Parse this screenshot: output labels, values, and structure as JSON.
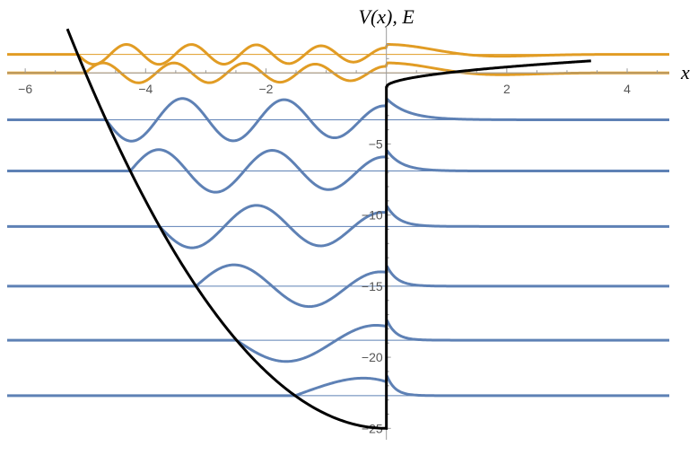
{
  "chart_data": {
    "type": "line",
    "title": "",
    "xlabel": "x",
    "ylabel": "V(x), E",
    "xlim": [
      -6.3,
      4.7
    ],
    "ylim": [
      -25.8,
      2.6
    ],
    "grid": false,
    "legend": "none",
    "x_ticks": [
      -6,
      -4,
      -2,
      2,
      4
    ],
    "x_tick_labels": [
      "−6",
      "−4",
      "−2",
      "2",
      "4"
    ],
    "y_ticks": [
      -5,
      -10,
      -15,
      -20,
      -25
    ],
    "y_tick_labels": [
      "−5",
      "−10",
      "−15",
      "−20",
      "−25"
    ],
    "potential": {
      "color": "#000000",
      "left_branch": "V(x) = x^2 - 25 for x < 0",
      "right_branch": "V(x) = sqrt(x) - 1 for x >= 0",
      "samples": [
        [
          -5.3,
          3.1
        ],
        [
          -5,
          0
        ],
        [
          -4,
          -9
        ],
        [
          -3,
          -16
        ],
        [
          -2,
          -21
        ],
        [
          -1,
          -24
        ],
        [
          0,
          -25
        ],
        [
          0,
          -1
        ],
        [
          0.5,
          -0.29
        ],
        [
          1,
          0
        ],
        [
          2,
          0.41
        ],
        [
          3,
          0.73
        ],
        [
          3.4,
          0.84
        ]
      ]
    },
    "levels": [
      {
        "energy": -22.7,
        "color": "#5E81B5",
        "amplitude": 1.5,
        "nodes": 0
      },
      {
        "energy": -18.8,
        "color": "#5E81B5",
        "amplitude": 1.5,
        "nodes": 1
      },
      {
        "energy": -15.0,
        "color": "#5E81B5",
        "amplitude": 1.5,
        "nodes": 2
      },
      {
        "energy": -10.8,
        "color": "#5E81B5",
        "amplitude": 1.5,
        "nodes": 3
      },
      {
        "energy": -6.9,
        "color": "#5E81B5",
        "amplitude": 1.5,
        "nodes": 4
      },
      {
        "energy": -3.3,
        "color": "#5E81B5",
        "amplitude": 1.5,
        "nodes": 5
      },
      {
        "energy": 0.0,
        "color": "#E19C24",
        "amplitude": 0.7,
        "nodes": 8
      },
      {
        "energy": 1.3,
        "color": "#E19C24",
        "amplitude": 0.7,
        "nodes": 9
      }
    ]
  }
}
